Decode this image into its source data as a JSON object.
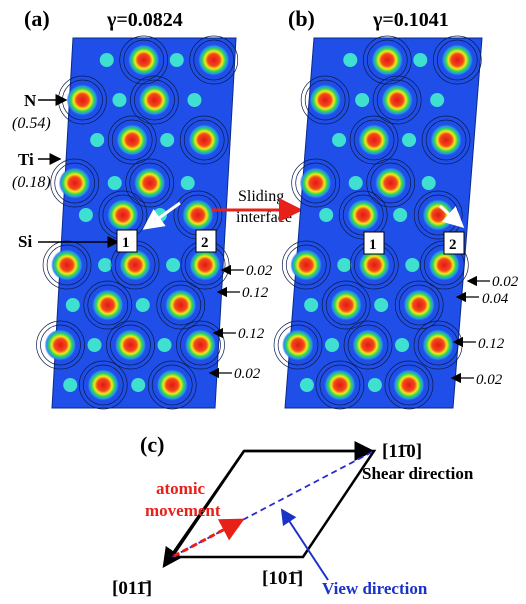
{
  "figure": {
    "panel_a": {
      "label": "(a)",
      "gamma": "γ=0.0824",
      "atom_labels": [
        {
          "name": "N",
          "charge": "(0.54)"
        },
        {
          "name": "Ti",
          "charge": "(0.18)"
        },
        {
          "name": "Si",
          "charge": ""
        }
      ],
      "site_labels": [
        "1",
        "2"
      ],
      "annotations": [
        "0.02",
        "0.12",
        "0.12",
        "0.02"
      ]
    },
    "center_label": {
      "line1": "Sliding",
      "line2": "interface"
    },
    "panel_b": {
      "label": "(b)",
      "gamma": "γ=0.1041",
      "site_labels": [
        "1",
        "2"
      ],
      "annotations": [
        "0.02",
        "0.04",
        "0.12",
        "0.02"
      ]
    },
    "panel_c": {
      "label": "(c)",
      "shear_index": "[11̄0]",
      "shear_label": "Shear direction",
      "atomic_movement_line1": "atomic",
      "atomic_movement_line2": "movement",
      "index_bottom_left": "[011̄]",
      "index_bottom_mid": "[101̄]",
      "view_label": "View direction"
    },
    "colors": {
      "background_map": "#1f4fe8",
      "peak_red": "#e8141a",
      "peak_yellow": "#f6e81a",
      "peak_green": "#2ad65a",
      "ti_cyan": "#3fe0d0",
      "arrow_red": "#e8201a",
      "dashed_blue": "#2a2ad0",
      "movement_red": "#e8201a",
      "view_blue": "#1a32c8"
    }
  }
}
